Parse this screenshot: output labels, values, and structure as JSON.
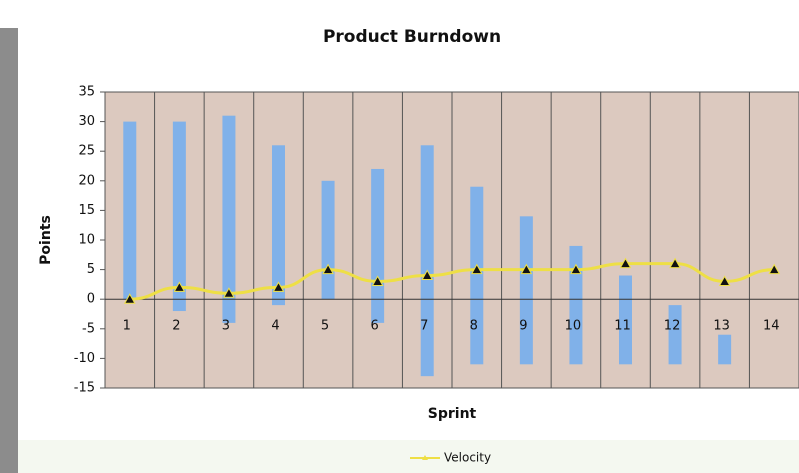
{
  "chart_data": {
    "type": "floating-bar-line",
    "title": "Product Burndown",
    "x_label": "Sprint",
    "y_label": "Points",
    "categories": [
      "1",
      "2",
      "3",
      "4",
      "5",
      "6",
      "7",
      "8",
      "9",
      "10",
      "11",
      "12",
      "13",
      "14"
    ],
    "bars": {
      "color": "#80b1e9",
      "high": [
        30,
        30,
        31,
        26,
        20,
        22,
        26,
        19,
        14,
        9,
        4,
        -1,
        -6,
        null
      ],
      "low": [
        0,
        -2,
        -4,
        -1,
        0,
        -4,
        -13,
        -11,
        -11,
        -11,
        -11,
        -11,
        -11,
        null
      ]
    },
    "series": [
      {
        "name": "Velocity",
        "color": "#eedf45",
        "values": [
          0,
          2,
          1,
          2,
          5,
          3,
          4,
          5,
          5,
          5,
          6,
          6,
          3,
          5
        ]
      }
    ],
    "ylim": [
      -15,
      35
    ],
    "yticks": [
      -15,
      -10,
      -5,
      0,
      5,
      10,
      15,
      20,
      25,
      30,
      35
    ],
    "legend": "bottom"
  }
}
